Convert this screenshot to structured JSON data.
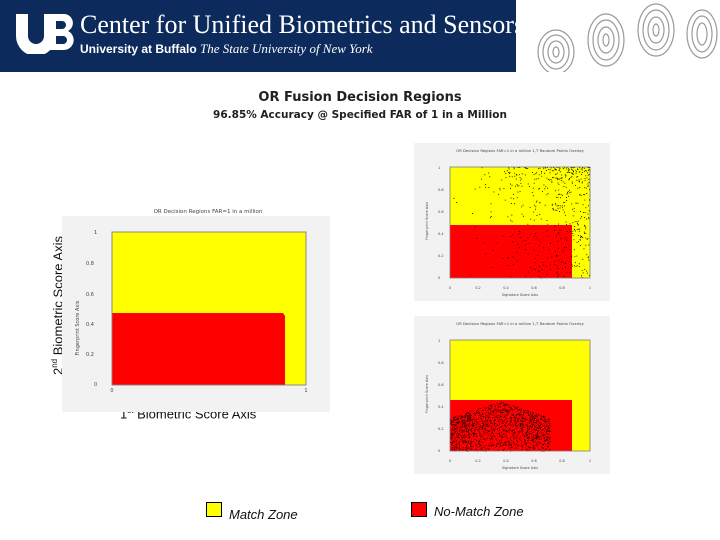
{
  "header": {
    "title": "Center for Unified Biometrics and Sensors",
    "university": "University at Buffalo",
    "tagline": "The State University of New York",
    "logo_text": "UB"
  },
  "slide": {
    "title": "OR Fusion Decision Regions",
    "subtitle": "96.85% Accuracy @ Specified FAR of 1 in a Million"
  },
  "axes": {
    "y_label_prefix": "2",
    "y_label_sup": "nd",
    "y_label_rest": " Biometric Score Axis",
    "x_label_prefix": "1",
    "x_label_sup": "st",
    "x_label_rest": " Biometric Score Axis"
  },
  "legend": {
    "match_label": "Match Zone",
    "nomatch_label": "No-Match Zone",
    "match_color": "#ffff00",
    "nomatch_color": "#ff0000"
  },
  "main_plot": {
    "title": "OR Decision Regions FAR=1 in a million",
    "ylabel": "Fingerprint Score Axis",
    "xticks": [
      "0",
      "1"
    ],
    "yticks": [
      "1",
      "0.8",
      "0.6",
      "0.4",
      "0.2",
      "0"
    ]
  },
  "thumb_top": {
    "title": "OR Decision Regions FAR=1 in a million 1,T Random Points Overlay",
    "ylabel": "Fingerprint Score Axis",
    "xlabel": "Signature Score Axis",
    "xticks": [
      "0",
      "0.2",
      "0.4",
      "0.6",
      "0.8",
      "1"
    ],
    "yticks": [
      "1",
      "0.8",
      "0.6",
      "0.4",
      "0.2",
      "0"
    ]
  },
  "thumb_bottom": {
    "title": "OR Decision Regions FAR=1 in a million 1,T Random Points Overlay",
    "ylabel": "Fingerprint Score Axis",
    "xlabel": "Signature Score Axis",
    "xticks": [
      "0",
      "0.2",
      "0.4",
      "0.6",
      "0.8",
      "1"
    ],
    "yticks": [
      "1",
      "0.8",
      "0.6",
      "0.4",
      "0.2",
      "0"
    ]
  }
}
